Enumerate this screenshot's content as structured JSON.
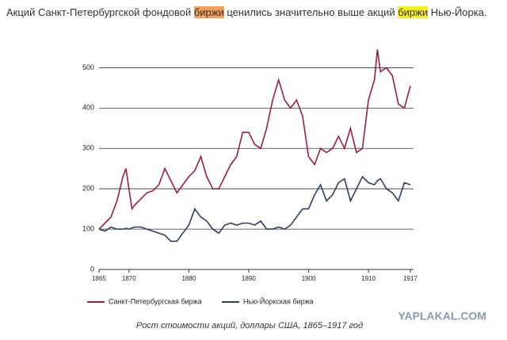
{
  "header": {
    "parts": [
      "Акций Санкт-Петербургской фондовой ",
      "биржи",
      " ценились значительно выше акций ",
      "биржи",
      " Нью-Йорка."
    ]
  },
  "chart_data": {
    "type": "line",
    "caption": "Рост стоимости акций, доллары США, 1865–1917 год",
    "watermark": "YAPLAKAL.COM",
    "xlim": [
      1865,
      1917
    ],
    "xticks": [
      1865,
      1870,
      1880,
      1890,
      1900,
      1910,
      1917
    ],
    "ylim": [
      0,
      550
    ],
    "yticks": [
      0,
      100,
      200,
      300,
      400,
      500
    ],
    "grid": true,
    "x": [
      1865,
      1866,
      1867,
      1868,
      1869,
      1869.5,
      1870,
      1870.5,
      1871,
      1872,
      1873,
      1874,
      1875,
      1876,
      1877,
      1878,
      1879,
      1880,
      1881,
      1882,
      1883,
      1884,
      1885,
      1886,
      1887,
      1888,
      1889,
      1890,
      1891,
      1892,
      1893,
      1894,
      1895,
      1896,
      1897,
      1898,
      1899,
      1900,
      1901,
      1902,
      1903,
      1904,
      1905,
      1906,
      1907,
      1908,
      1909,
      1910,
      1911,
      1911.5,
      1912,
      1913,
      1914,
      1915,
      1916,
      1917
    ],
    "series": [
      {
        "name": "Санкт-Петербургская биржа",
        "color": "#9a1f40",
        "values": [
          100,
          115,
          130,
          170,
          230,
          250,
          200,
          150,
          160,
          175,
          190,
          195,
          210,
          250,
          220,
          190,
          210,
          230,
          245,
          280,
          230,
          200,
          200,
          230,
          260,
          280,
          340,
          340,
          310,
          300,
          350,
          420,
          470,
          420,
          400,
          420,
          380,
          280,
          260,
          300,
          290,
          300,
          330,
          300,
          350,
          290,
          300,
          420,
          470,
          545,
          490,
          500,
          480,
          410,
          400,
          455
        ]
      },
      {
        "name": "Нью-Йоркская биржа",
        "color": "#2d3e5e",
        "values": [
          100,
          95,
          105,
          100,
          100,
          102,
          100,
          103,
          105,
          105,
          100,
          95,
          90,
          85,
          70,
          70,
          90,
          110,
          150,
          130,
          120,
          100,
          90,
          110,
          115,
          110,
          115,
          115,
          110,
          120,
          100,
          100,
          105,
          100,
          110,
          130,
          150,
          150,
          185,
          210,
          170,
          185,
          215,
          225,
          170,
          200,
          230,
          215,
          210,
          220,
          225,
          200,
          190,
          170,
          215,
          210
        ]
      }
    ]
  }
}
